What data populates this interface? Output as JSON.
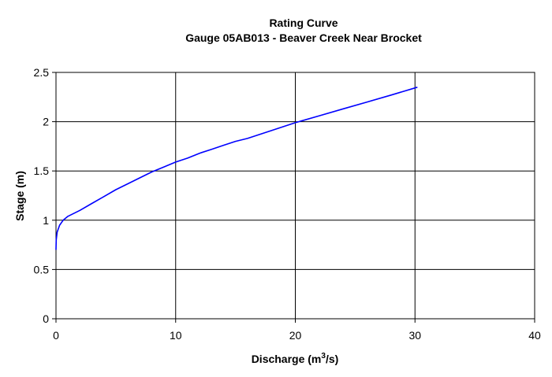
{
  "chart_data": {
    "type": "line",
    "title": "Rating Curve",
    "subtitle": "Gauge 05AB013 - Beaver Creek Near Brocket",
    "xlabel": {
      "base": "Discharge (m",
      "sup": "3",
      "tail": "/s)"
    },
    "ylabel": "Stage (m)",
    "xlim": [
      0,
      40
    ],
    "ylim": [
      0,
      2.5
    ],
    "xticks": [
      0,
      10,
      20,
      30,
      40
    ],
    "yticks": [
      0,
      0.5,
      1,
      1.5,
      2,
      2.5
    ],
    "xtick_labels": [
      "0",
      "10",
      "20",
      "30",
      "40"
    ],
    "ytick_labels": [
      "0",
      "0.5",
      "1",
      "1.5",
      "2",
      "2.5"
    ],
    "grid": true,
    "series": [
      {
        "color": "#0000ff",
        "x": [
          0.0,
          0.02,
          0.1,
          0.3,
          0.6,
          1.0,
          2.0,
          3.0,
          4.0,
          5.0,
          6.0,
          7.0,
          8.0,
          9.0,
          10.0,
          11.0,
          12.0,
          13.0,
          14.0,
          15.0,
          16.0,
          18.0,
          20.0,
          22.0,
          24.0,
          26.0,
          28.0,
          30.2
        ],
        "y": [
          0.7,
          0.8,
          0.88,
          0.95,
          1.0,
          1.04,
          1.1,
          1.17,
          1.24,
          1.31,
          1.37,
          1.43,
          1.49,
          1.54,
          1.59,
          1.63,
          1.68,
          1.72,
          1.76,
          1.8,
          1.83,
          1.91,
          1.99,
          2.06,
          2.13,
          2.2,
          2.27,
          2.35
        ]
      }
    ]
  }
}
